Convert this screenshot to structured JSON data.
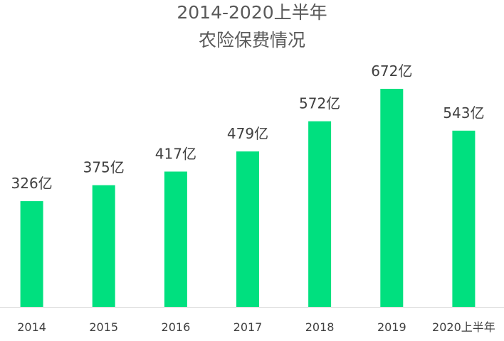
{
  "chart_data": {
    "type": "bar",
    "title_lines": [
      "2014-2020上半年",
      "农险保费情况"
    ],
    "categories": [
      "2014",
      "2015",
      "2016",
      "2017",
      "2018",
      "2019",
      "2020上半年"
    ],
    "values": [
      326,
      375,
      417,
      479,
      572,
      672,
      543
    ],
    "data_labels": [
      "326亿",
      "375亿",
      "417亿",
      "479亿",
      "572亿",
      "672亿",
      "543亿"
    ],
    "unit": "亿",
    "ylim": [
      0,
      800
    ],
    "grid": false,
    "legend": "none",
    "bar_color": "#00E07F",
    "xlabel": "",
    "ylabel": ""
  }
}
